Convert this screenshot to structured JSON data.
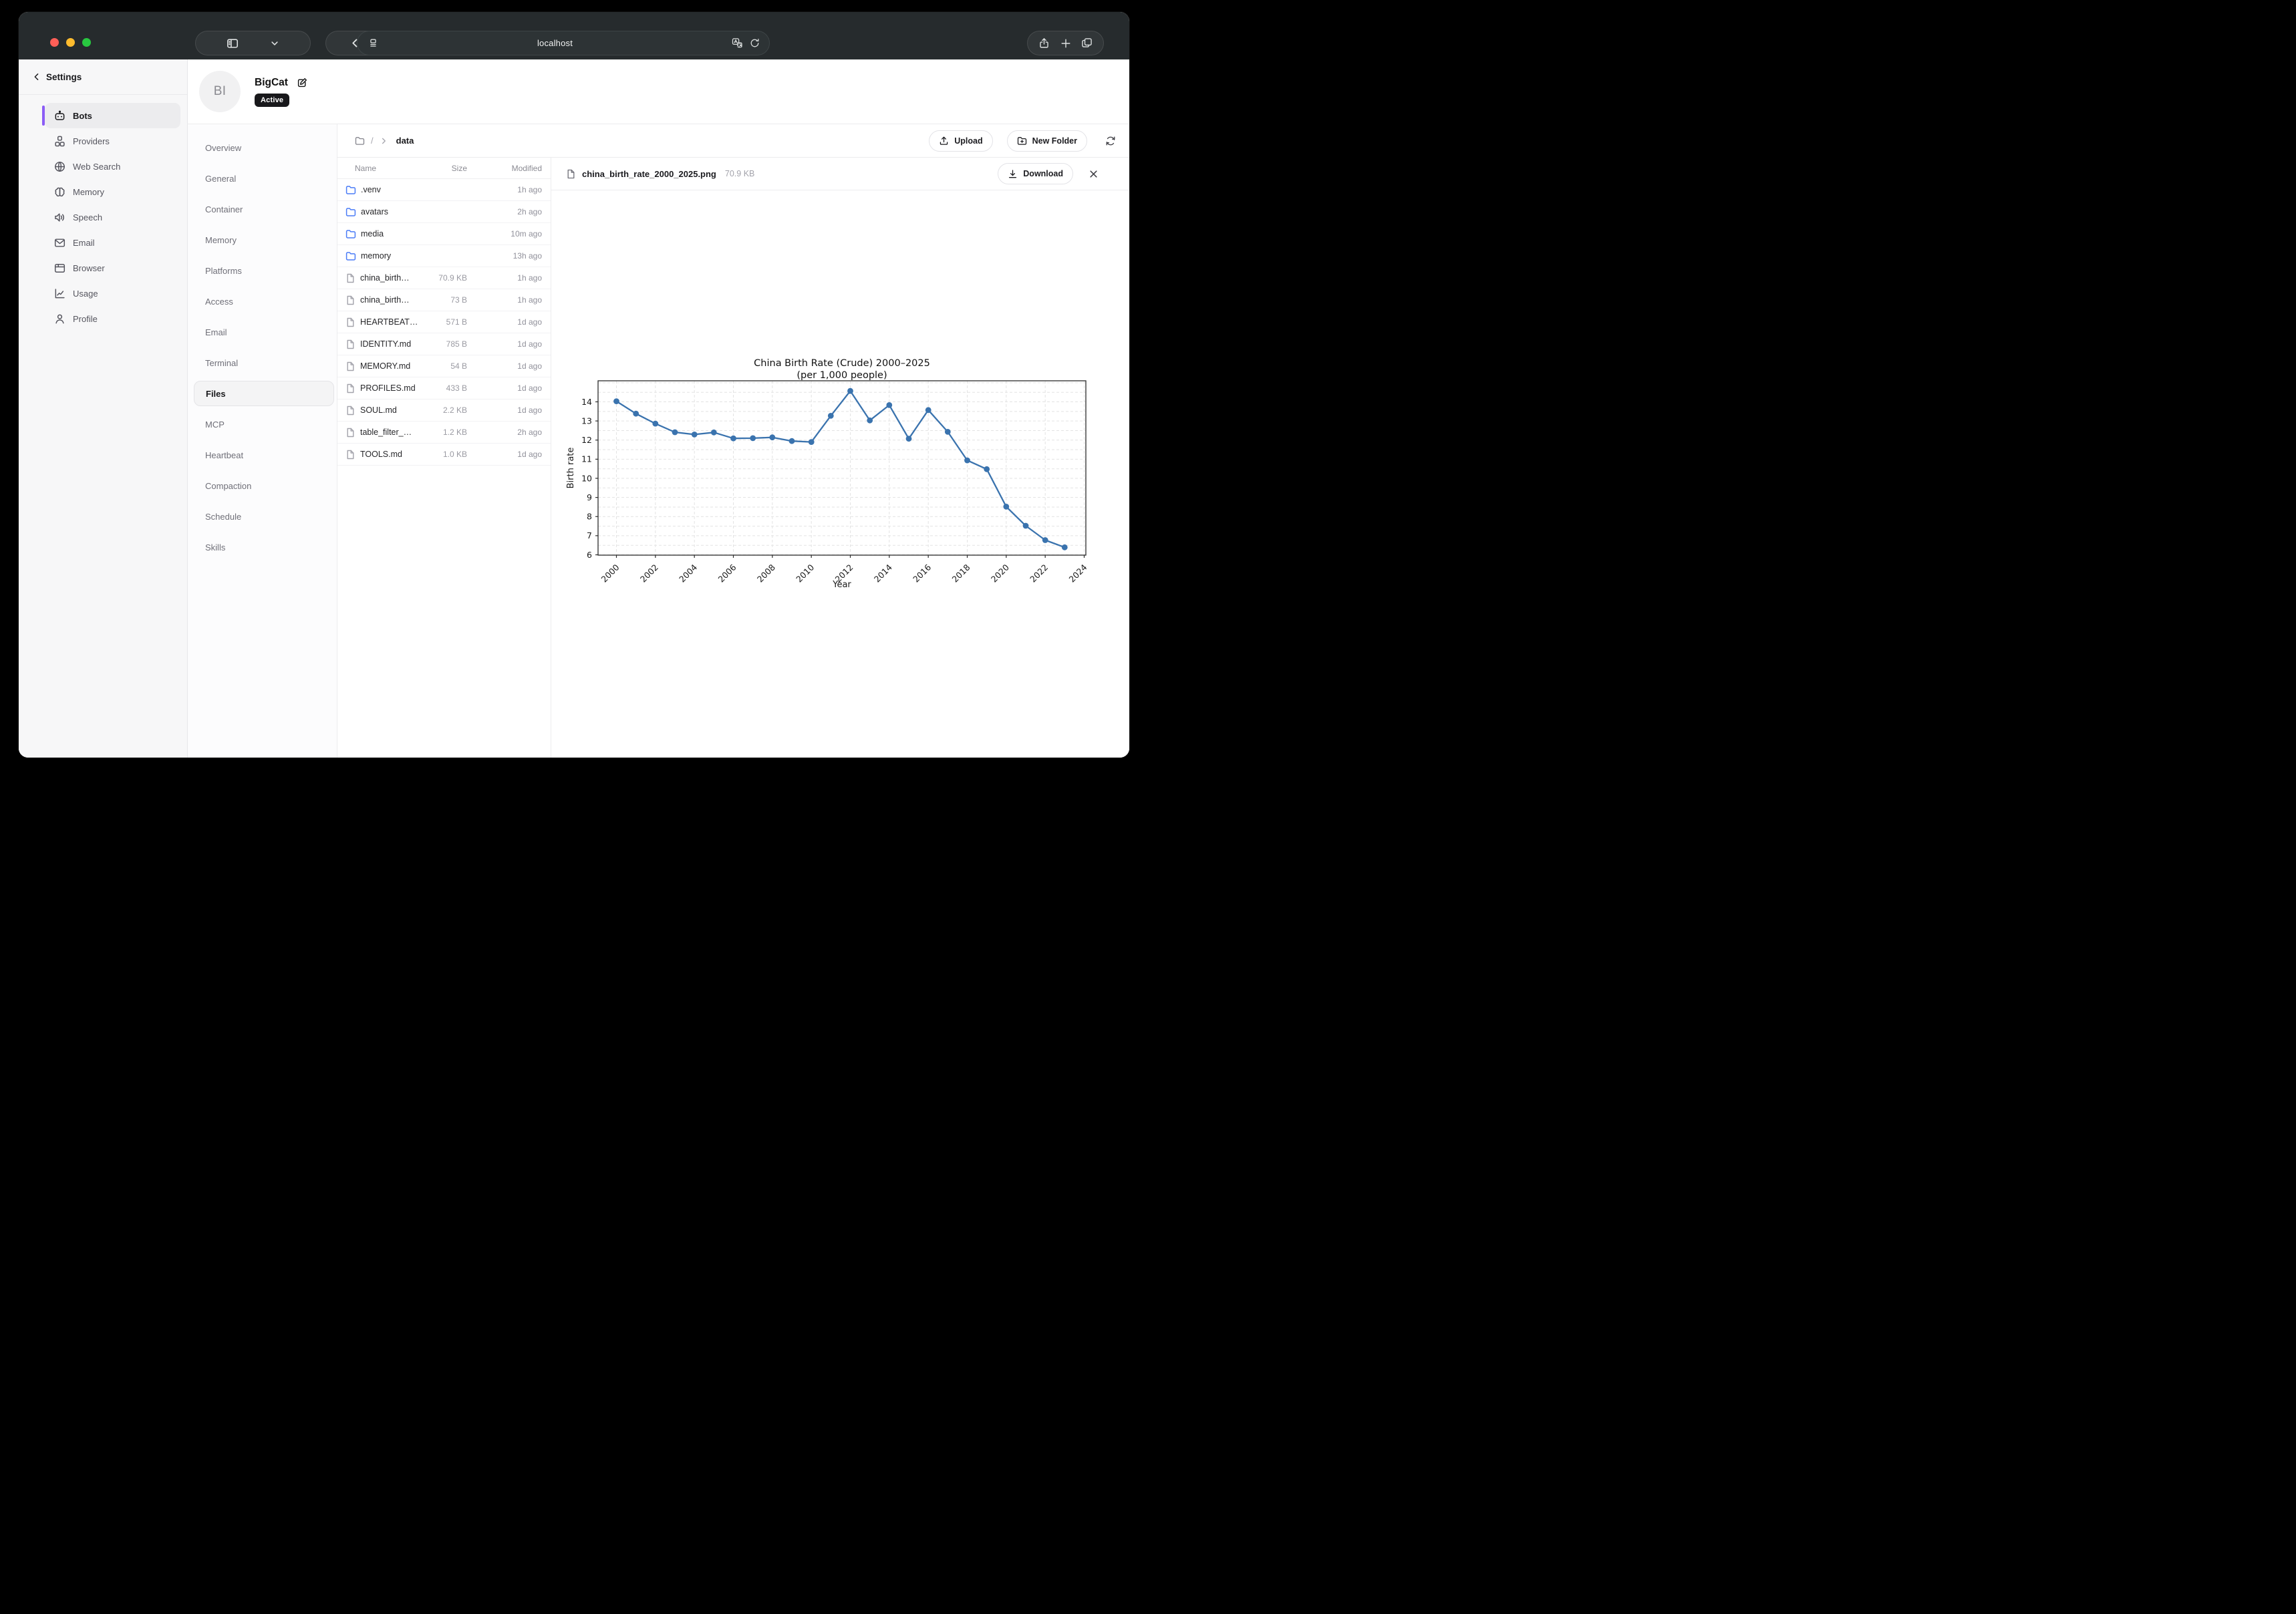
{
  "browser": {
    "url": "localhost",
    "window_controls": [
      "close",
      "minimize",
      "zoom"
    ]
  },
  "colors": {
    "accent_purple": "#8b5cf6",
    "folder_blue": "#4a7cf7",
    "chart_line": "#3a73ae",
    "badge_bg": "#18181b"
  },
  "sidebar": {
    "title": "Settings",
    "items": [
      {
        "label": "Bots",
        "icon": "bot",
        "active": true
      },
      {
        "label": "Providers",
        "icon": "providers"
      },
      {
        "label": "Web Search",
        "icon": "globe"
      },
      {
        "label": "Memory",
        "icon": "brain"
      },
      {
        "label": "Speech",
        "icon": "speaker"
      },
      {
        "label": "Email",
        "icon": "mail"
      },
      {
        "label": "Browser",
        "icon": "browser"
      },
      {
        "label": "Usage",
        "icon": "usage"
      },
      {
        "label": "Profile",
        "icon": "person"
      }
    ]
  },
  "bot_header": {
    "avatar_initials": "BI",
    "name": "BigCat",
    "status": "Active"
  },
  "bot_nav": {
    "active": "Files",
    "items": [
      "Overview",
      "General",
      "Container",
      "Memory",
      "Platforms",
      "Access",
      "Email",
      "Terminal",
      "Files",
      "MCP",
      "Heartbeat",
      "Compaction",
      "Schedule",
      "Skills"
    ]
  },
  "files": {
    "breadcrumb": {
      "root": "/",
      "current": "data"
    },
    "actions": {
      "upload": "Upload",
      "new_folder": "New Folder"
    },
    "table": {
      "headers": [
        "Name",
        "Size",
        "Modified"
      ],
      "rows": [
        {
          "name": ".venv",
          "type": "folder",
          "size": "",
          "modified": "1h ago"
        },
        {
          "name": "avatars",
          "type": "folder",
          "size": "",
          "modified": "2h ago"
        },
        {
          "name": "media",
          "type": "folder",
          "size": "",
          "modified": "10m ago"
        },
        {
          "name": "memory",
          "type": "folder",
          "size": "",
          "modified": "13h ago"
        },
        {
          "name": "china_birth…",
          "type": "file",
          "size": "70.9 KB",
          "modified": "1h ago"
        },
        {
          "name": "china_birth…",
          "type": "file",
          "size": "73 B",
          "modified": "1h ago"
        },
        {
          "name": "HEARTBEAT…",
          "type": "file",
          "size": "571 B",
          "modified": "1d ago"
        },
        {
          "name": "IDENTITY.md",
          "type": "file",
          "size": "785 B",
          "modified": "1d ago"
        },
        {
          "name": "MEMORY.md",
          "type": "file",
          "size": "54 B",
          "modified": "1d ago"
        },
        {
          "name": "PROFILES.md",
          "type": "file",
          "size": "433 B",
          "modified": "1d ago"
        },
        {
          "name": "SOUL.md",
          "type": "file",
          "size": "2.2 KB",
          "modified": "1d ago"
        },
        {
          "name": "table_filter_…",
          "type": "file",
          "size": "1.2 KB",
          "modified": "2h ago"
        },
        {
          "name": "TOOLS.md",
          "type": "file",
          "size": "1.0 KB",
          "modified": "1d ago"
        }
      ]
    }
  },
  "preview": {
    "file_name": "china_birth_rate_2000_2025.png",
    "file_size": "70.9 KB",
    "download_label": "Download"
  },
  "chart_data": {
    "type": "line",
    "title": "China Birth Rate (Crude) 2000–2025",
    "subtitle": "(per 1,000 people)",
    "xlabel": "Year",
    "ylabel": "Birth rate",
    "x": [
      2000,
      2001,
      2002,
      2003,
      2004,
      2005,
      2006,
      2007,
      2008,
      2009,
      2010,
      2011,
      2012,
      2013,
      2014,
      2015,
      2016,
      2017,
      2018,
      2019,
      2020,
      2021,
      2022,
      2023
    ],
    "values": [
      14.03,
      13.38,
      12.86,
      12.41,
      12.29,
      12.4,
      12.09,
      12.1,
      12.14,
      11.95,
      11.9,
      13.27,
      14.57,
      13.03,
      13.83,
      12.07,
      13.57,
      12.43,
      10.94,
      10.48,
      8.52,
      7.52,
      6.77,
      6.39
    ],
    "xticks": [
      2000,
      2002,
      2004,
      2006,
      2008,
      2010,
      2012,
      2014,
      2016,
      2018,
      2020,
      2022,
      2024
    ],
    "yticks": [
      6,
      7,
      8,
      9,
      10,
      11,
      12,
      13,
      14
    ],
    "xlim": [
      1999.05,
      2024.4
    ],
    "ylim": [
      5.97,
      15.1
    ],
    "grid": true,
    "legend": "none",
    "line_color": "#3a73ae"
  }
}
